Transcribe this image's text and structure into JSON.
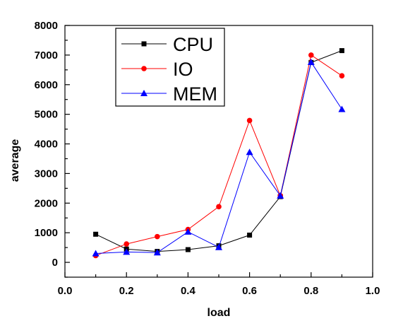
{
  "chart_data": {
    "type": "line",
    "title": "",
    "xlabel": "load",
    "ylabel": "average",
    "xlim": [
      0.0,
      1.0
    ],
    "ylim": [
      -500,
      8000
    ],
    "xticks": [
      "0.0",
      "0.2",
      "0.4",
      "0.6",
      "0.8",
      "1.0"
    ],
    "yticks": [
      "0",
      "1000",
      "2000",
      "3000",
      "4000",
      "5000",
      "6000",
      "7000",
      "8000"
    ],
    "x": [
      0.1,
      0.2,
      0.3,
      0.4,
      0.5,
      0.6,
      0.7,
      0.8,
      0.9
    ],
    "grid": false,
    "legend_position": "top-left",
    "series": [
      {
        "name": "CPU",
        "color": "#000000",
        "marker": "square",
        "values": [
          950,
          450,
          370,
          430,
          560,
          920,
          2220,
          6750,
          7150
        ]
      },
      {
        "name": "IO",
        "color": "#ff0000",
        "marker": "circle",
        "values": [
          230,
          620,
          870,
          1110,
          1880,
          4790,
          2250,
          7000,
          6300
        ]
      },
      {
        "name": "MEM",
        "color": "#0000ff",
        "marker": "triangle",
        "values": [
          300,
          350,
          330,
          1030,
          510,
          3720,
          2250,
          6760,
          5170
        ]
      }
    ]
  }
}
